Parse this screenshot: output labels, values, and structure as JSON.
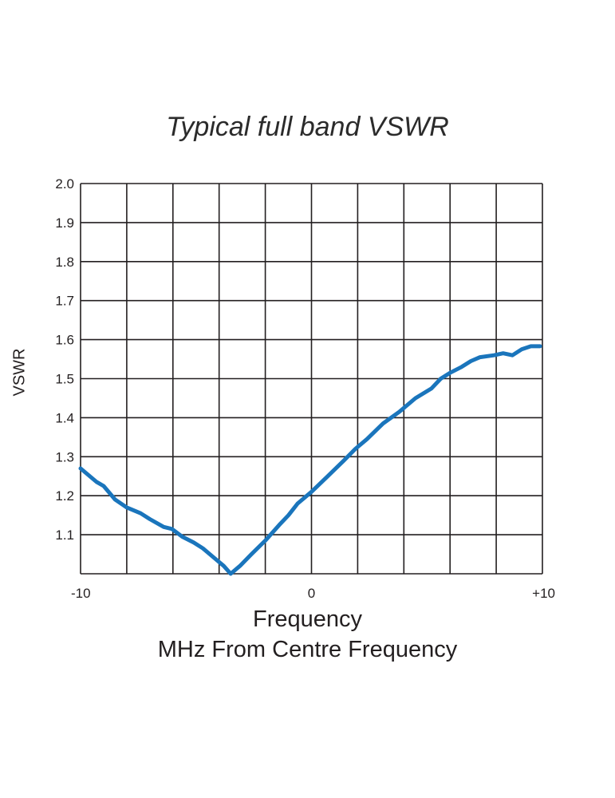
{
  "chart_data": {
    "type": "line",
    "title": "Typical full band VSWR",
    "xlabel": "Frequency",
    "xlabel_sub": "MHz From Centre Frequency",
    "ylabel": "VSWR",
    "xlim": [
      -10,
      10
    ],
    "ylim": [
      1.0,
      2.0
    ],
    "grid": true,
    "x_grid_step": 2,
    "y_grid_step": 0.1,
    "x_tick_labels": [
      {
        "value": -10,
        "label": "-10"
      },
      {
        "value": 0,
        "label": "0"
      },
      {
        "value": 10,
        "label": "+10"
      }
    ],
    "y_tick_labels": [
      "2.0",
      "1.9",
      "1.8",
      "1.7",
      "1.6",
      "1.5",
      "1.4",
      "1.3",
      "1.2",
      "1.1"
    ],
    "line_color": "#1a75bc",
    "series": [
      {
        "x": [
          -10,
          -9.3,
          -9.0,
          -8.5,
          -8.0,
          -7.4,
          -7.0,
          -6.4,
          -6.05,
          -5.6,
          -5.1,
          -4.7,
          -4.3,
          -3.8,
          -3.5,
          -3.1,
          -2.6,
          -2.0,
          -1.4,
          -1.0,
          -0.6,
          0,
          0.7,
          1.4,
          1.9,
          2.4,
          3.1,
          3.8,
          4.5,
          5.2,
          5.6,
          6.0,
          6.5,
          6.9,
          7.3,
          7.9,
          8.3,
          8.7,
          9.1,
          9.5,
          9.9
        ],
        "y": [
          1.27,
          1.235,
          1.225,
          1.19,
          1.17,
          1.155,
          1.14,
          1.12,
          1.115,
          1.095,
          1.08,
          1.065,
          1.045,
          1.02,
          1.0,
          1.02,
          1.05,
          1.085,
          1.125,
          1.15,
          1.18,
          1.21,
          1.25,
          1.29,
          1.32,
          1.345,
          1.385,
          1.415,
          1.45,
          1.475,
          1.5,
          1.515,
          1.53,
          1.545,
          1.555,
          1.56,
          1.565,
          1.56,
          1.575,
          1.583,
          1.583
        ]
      }
    ]
  }
}
